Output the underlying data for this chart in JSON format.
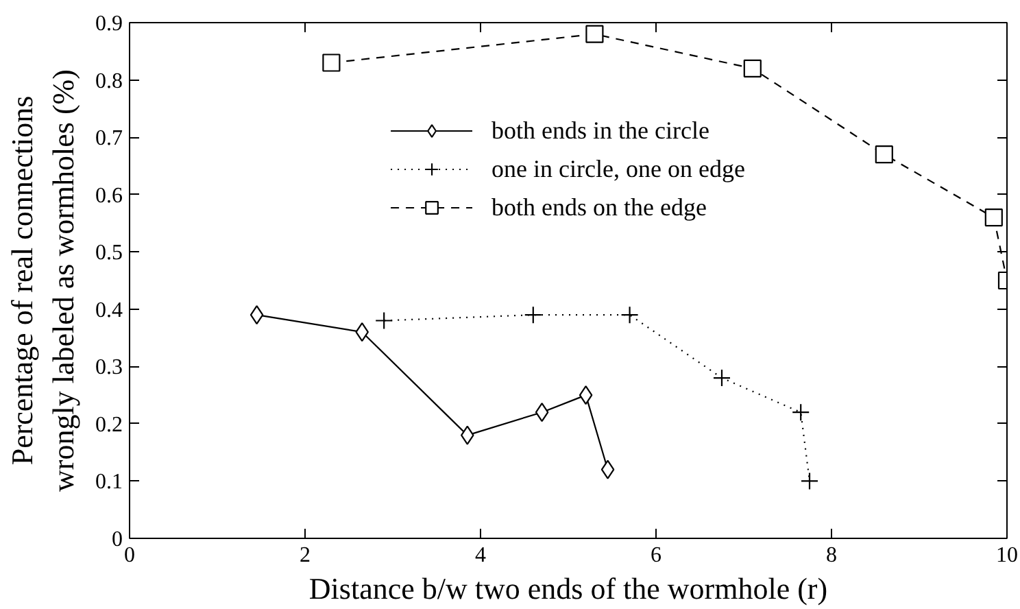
{
  "chart_data": {
    "type": "line",
    "xlabel": "Distance b/w two ends of the wormhole (r)",
    "ylabel": "Percentage of real connections\nwrongly labeled as wormholes (%)",
    "xlim": [
      0,
      10
    ],
    "ylim": [
      0,
      0.9
    ],
    "xticks": [
      0,
      2,
      4,
      6,
      8,
      10
    ],
    "yticks": [
      0,
      0.1,
      0.2,
      0.3,
      0.4,
      0.5,
      0.6,
      0.7,
      0.8,
      0.9
    ],
    "legend": "top",
    "series": [
      {
        "name": "both ends in the circle",
        "color": "#000000",
        "marker": "diamond",
        "line_style": "solid",
        "x": [
          1.45,
          2.65,
          3.85,
          4.7,
          5.2,
          5.45
        ],
        "values": [
          0.39,
          0.36,
          0.18,
          0.22,
          0.25,
          0.12
        ]
      },
      {
        "name": "one in circle, one on edge",
        "color": "#000000",
        "marker": "cross",
        "line_style": "dotted",
        "x": [
          2.9,
          4.6,
          5.7,
          6.75,
          7.65,
          7.75
        ],
        "values": [
          0.38,
          0.39,
          0.39,
          0.28,
          0.22,
          0.1
        ]
      },
      {
        "name": "both ends on the edge",
        "color": "#000000",
        "marker": "square",
        "line_style": "dashed",
        "x": [
          2.3,
          5.3,
          7.1,
          8.6,
          9.85,
          10
        ],
        "values": [
          0.83,
          0.88,
          0.82,
          0.67,
          0.56,
          0.45
        ]
      }
    ]
  }
}
